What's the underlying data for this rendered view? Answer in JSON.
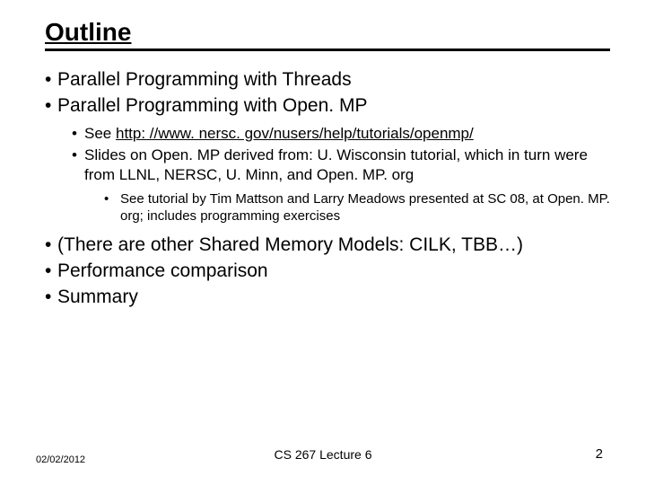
{
  "title": "Outline",
  "bullets_top": [
    "Parallel Programming with Threads",
    "Parallel Programming with Open. MP"
  ],
  "sub_bullets": {
    "see_prefix": "See ",
    "see_link": "http: //www. nersc. gov/nusers/help/tutorials/openmp/",
    "derived": "Slides on Open. MP derived from: U. Wisconsin tutorial, which in turn were from LLNL, NERSC, U. Minn, and Open. MP. org"
  },
  "subsub": "See tutorial by Tim Mattson and Larry Meadows presented at SC 08, at Open. MP. org; includes programming exercises",
  "bullets_bottom": [
    "(There are other Shared Memory Models: CILK, TBB…)",
    "Performance comparison",
    "Summary"
  ],
  "footer": {
    "date": "02/02/2012",
    "center": "CS 267 Lecture 6",
    "page": "2"
  }
}
